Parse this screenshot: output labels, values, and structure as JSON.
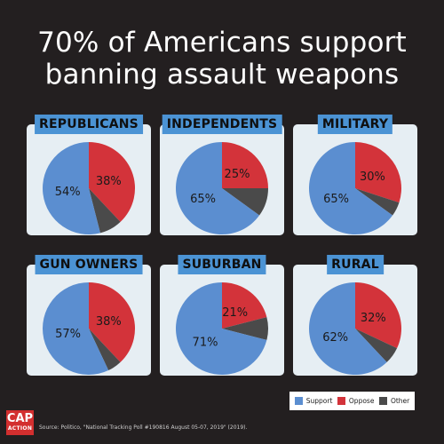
{
  "title": {
    "line1": "70% of Americans support",
    "line2": "banning assault weapons"
  },
  "colors": {
    "support": "#5b8ed0",
    "oppose": "#d3333a",
    "other": "#4a4a4a",
    "background": "#231f20",
    "panel": "#e6eef3",
    "label_bg": "#4b93d4"
  },
  "chart_data": {
    "type": "pie",
    "series_labels": [
      "Support",
      "Oppose",
      "Other"
    ],
    "groups": [
      {
        "label": "REPUBLICANS",
        "support": 54,
        "oppose": 38,
        "support_label": "54%",
        "oppose_label": "38%"
      },
      {
        "label": "INDEPENDENTS",
        "support": 65,
        "oppose": 25,
        "support_label": "65%",
        "oppose_label": "25%"
      },
      {
        "label": "MILITARY",
        "support": 65,
        "oppose": 30,
        "support_label": "65%",
        "oppose_label": "30%"
      },
      {
        "label": "GUN OWNERS",
        "support": 57,
        "oppose": 38,
        "support_label": "57%",
        "oppose_label": "38%"
      },
      {
        "label": "SUBURBAN",
        "support": 71,
        "oppose": 21,
        "support_label": "71%",
        "oppose_label": "21%"
      },
      {
        "label": "RURAL",
        "support": 62,
        "oppose": 32,
        "support_label": "62%",
        "oppose_label": "32%"
      }
    ]
  },
  "legend": {
    "support": "Support",
    "oppose": "Oppose",
    "other": "Other"
  },
  "logo": {
    "cap": "CAP",
    "action": "ACTION"
  },
  "source": "Source: Politico, \"National Tracking Poll #190816 August 05-07, 2019\" (2019)."
}
